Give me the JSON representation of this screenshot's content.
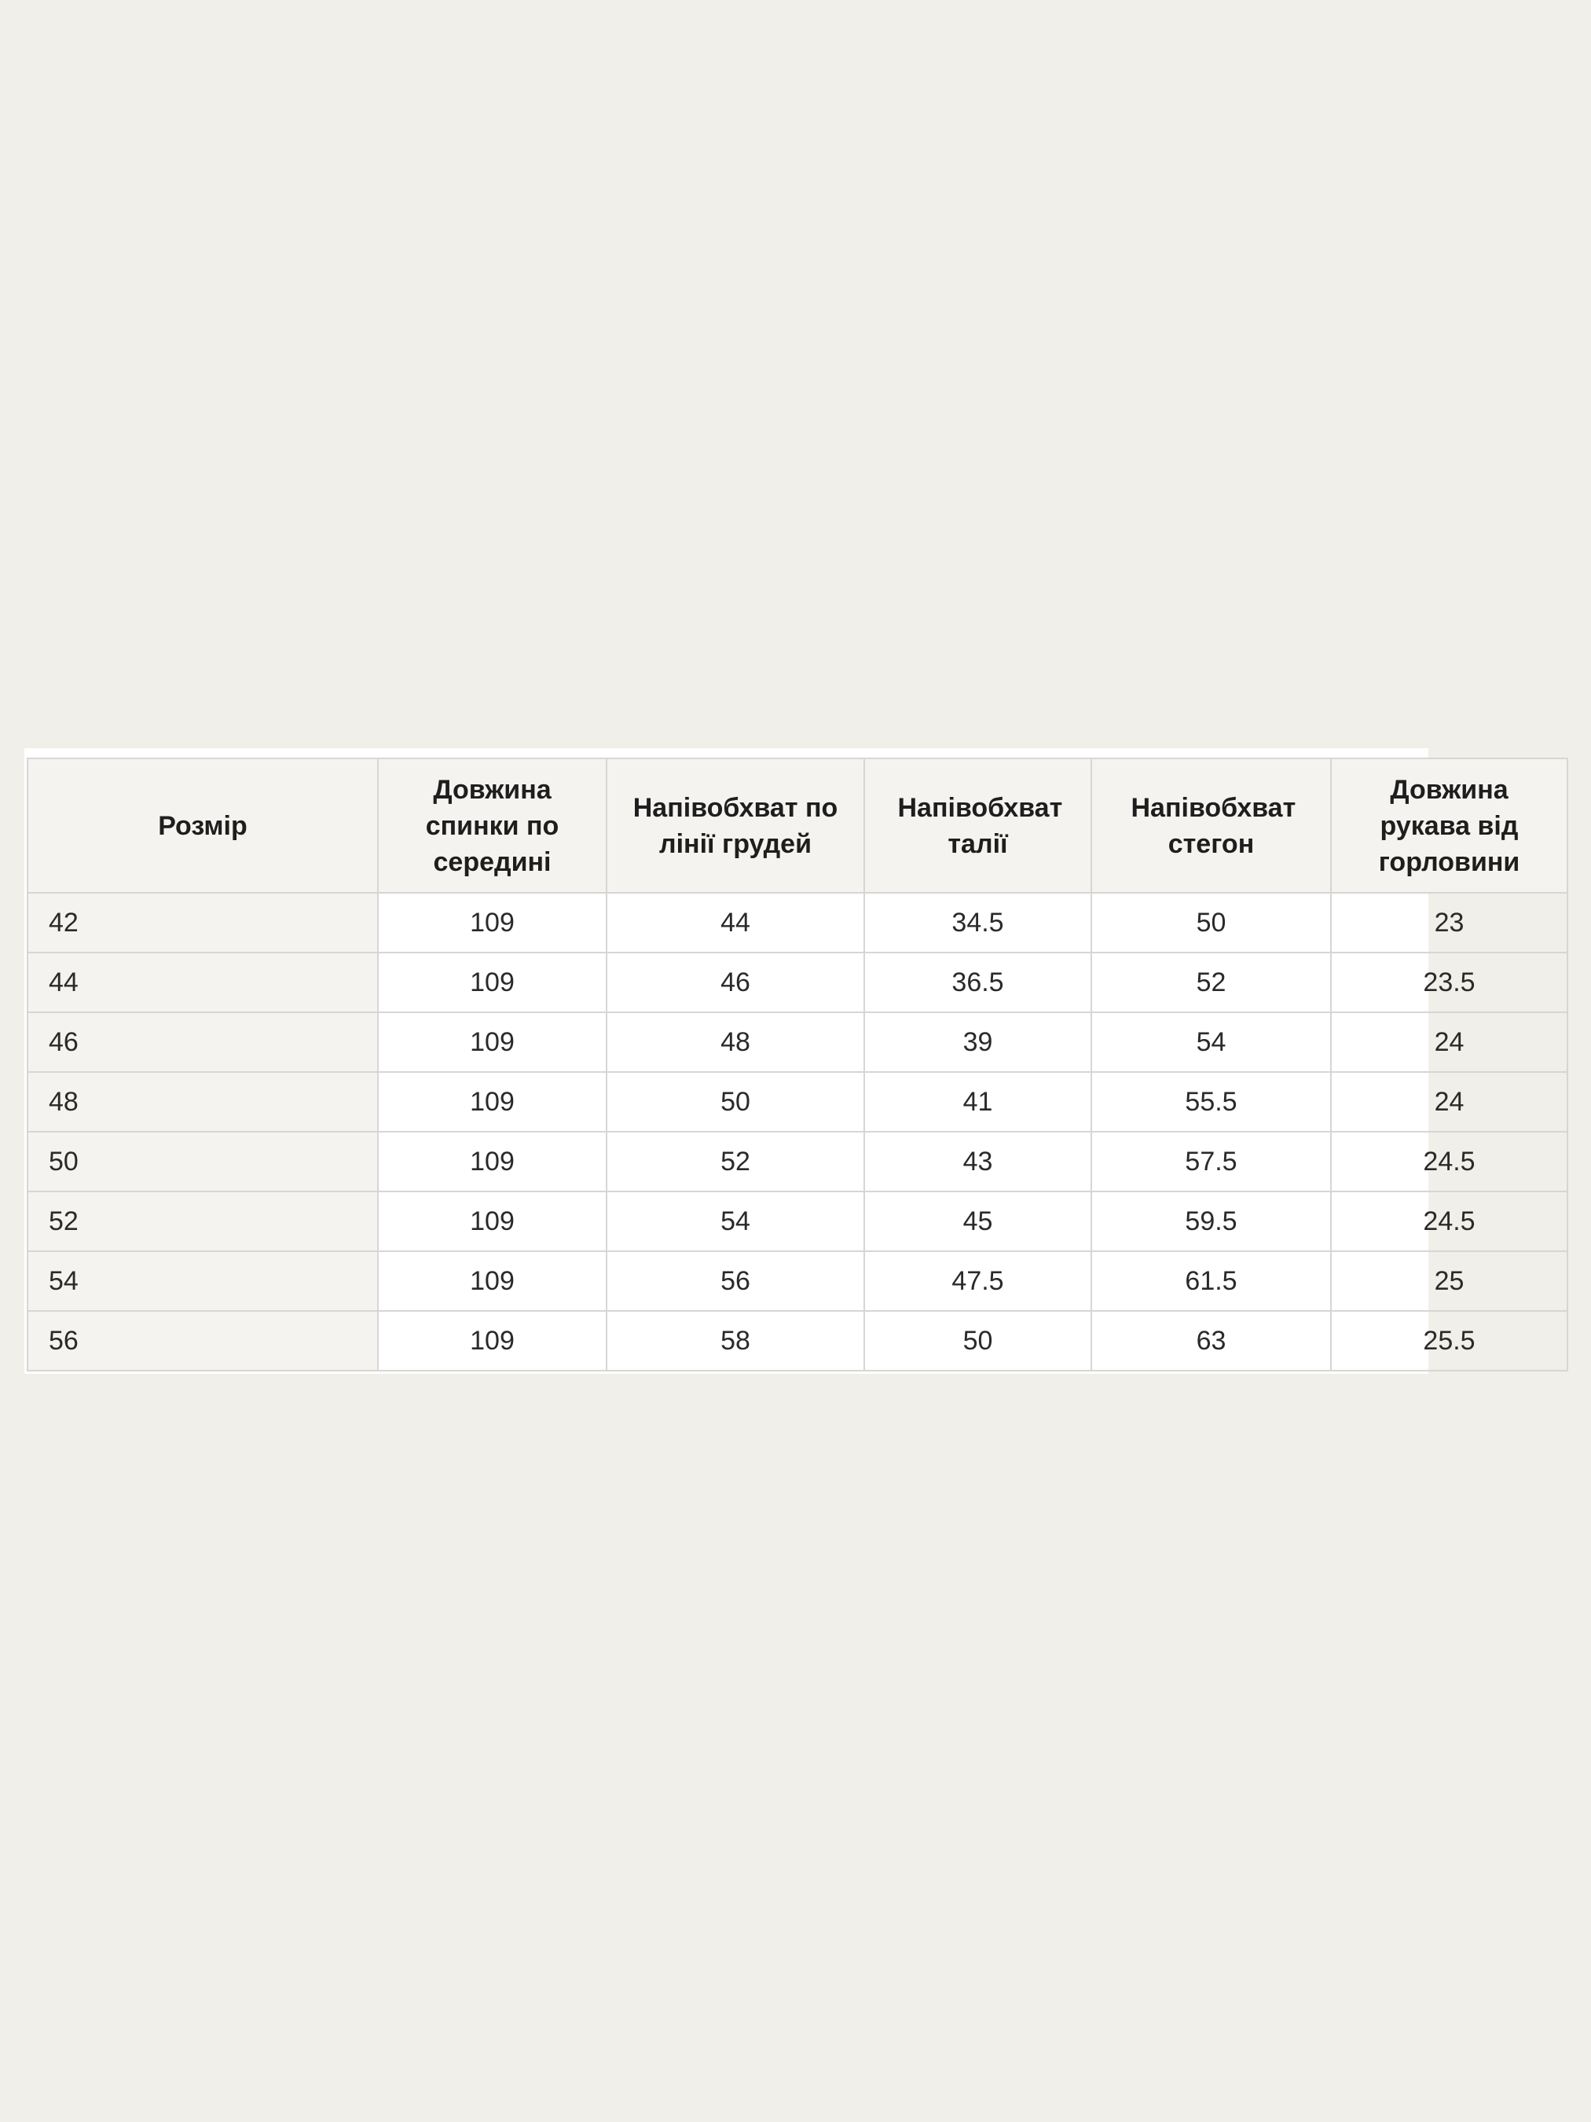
{
  "table": {
    "headers": [
      "Розмір",
      "Довжина спинки по середині",
      "Напівобхват по лінії грудей",
      "Напівобхват талії",
      "Напівобхват стегон",
      "Довжина рукава від горловини"
    ],
    "rows": [
      [
        "42",
        "109",
        "44",
        "34.5",
        "50",
        "23"
      ],
      [
        "44",
        "109",
        "46",
        "36.5",
        "52",
        "23.5"
      ],
      [
        "46",
        "109",
        "48",
        "39",
        "54",
        "24"
      ],
      [
        "48",
        "109",
        "50",
        "41",
        "55.5",
        "24"
      ],
      [
        "50",
        "109",
        "52",
        "43",
        "57.5",
        "24.5"
      ],
      [
        "52",
        "109",
        "54",
        "45",
        "59.5",
        "24.5"
      ],
      [
        "54",
        "109",
        "56",
        "47.5",
        "61.5",
        "25"
      ],
      [
        "56",
        "109",
        "58",
        "50",
        "63",
        "25.5"
      ]
    ]
  }
}
